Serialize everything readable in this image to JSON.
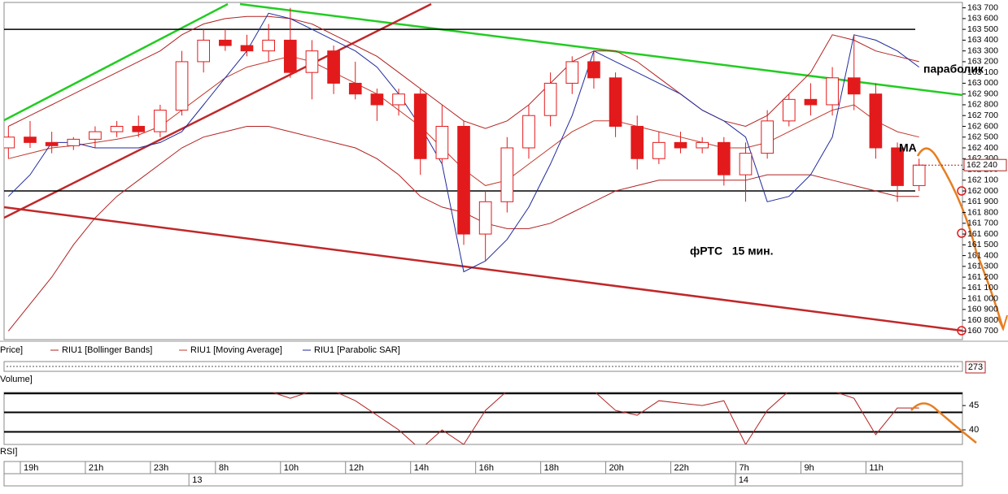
{
  "chart_data": {
    "type": "candlestick",
    "price_label": "Price]",
    "x": [
      -1,
      0,
      1,
      2,
      3,
      4,
      5,
      6,
      7,
      8,
      9,
      10,
      11,
      12,
      13,
      14,
      15,
      16,
      17,
      18,
      19,
      20,
      21,
      22,
      23,
      24,
      25,
      26,
      27,
      28,
      29,
      30,
      31,
      32,
      33,
      34,
      35,
      36,
      37,
      38,
      39,
      40,
      41
    ],
    "xlim": [
      -1.2,
      43
    ],
    "xticks": [
      {
        "value": 0,
        "label": "19h"
      },
      {
        "value": 3,
        "label": "21h"
      },
      {
        "value": 6,
        "label": "23h"
      },
      {
        "value": 9,
        "label": "8h"
      },
      {
        "value": 12,
        "label": "10h"
      },
      {
        "value": 15,
        "label": "12h"
      },
      {
        "value": 18,
        "label": "14h"
      },
      {
        "value": 21,
        "label": "16h"
      },
      {
        "value": 24,
        "label": "18h"
      },
      {
        "value": 27,
        "label": "20h"
      },
      {
        "value": 30,
        "label": "22h"
      },
      {
        "value": 33,
        "label": "7h"
      },
      {
        "value": 36,
        "label": "9h"
      },
      {
        "value": 39,
        "label": "11h"
      }
    ],
    "date_ticks": [
      {
        "value": 7.4,
        "label": "13"
      },
      {
        "value": 32.6,
        "label": "14"
      }
    ],
    "open": [
      162400,
      162500,
      162450,
      162420,
      162480,
      162550,
      162600,
      162550,
      162750,
      163200,
      163400,
      163350,
      163300,
      163400,
      163100,
      163300,
      163000,
      162900,
      162800,
      162900,
      162300,
      162600,
      161600,
      161900,
      162400,
      162700,
      163000,
      163200,
      163050,
      162600,
      162300,
      162450,
      162400,
      162450,
      162150,
      162350,
      162650,
      162850,
      162800,
      163050,
      162900,
      162400,
      162050
    ],
    "high": [
      162600,
      162650,
      162550,
      162500,
      162600,
      162650,
      162700,
      162800,
      163300,
      163500,
      163500,
      163450,
      163550,
      163700,
      163400,
      163350,
      163200,
      162950,
      162950,
      162950,
      162800,
      162650,
      162000,
      162500,
      162800,
      163100,
      163250,
      163300,
      163100,
      162700,
      162550,
      162550,
      162500,
      162500,
      162450,
      162750,
      162900,
      163000,
      163150,
      163450,
      163000,
      162450,
      162300
    ],
    "low": [
      162300,
      162400,
      162350,
      162380,
      162400,
      162500,
      162500,
      162500,
      162700,
      163100,
      163300,
      163250,
      163200,
      163050,
      162850,
      162900,
      162850,
      162650,
      162700,
      162150,
      162250,
      161500,
      161350,
      161800,
      162300,
      162600,
      162900,
      162950,
      162500,
      162200,
      162250,
      162350,
      162350,
      162050,
      161900,
      162300,
      162600,
      162700,
      162700,
      162750,
      162300,
      161900,
      162000
    ],
    "close": [
      162500,
      162450,
      162420,
      162480,
      162550,
      162600,
      162550,
      162750,
      163200,
      163400,
      163350,
      163300,
      163400,
      163100,
      163300,
      163000,
      162900,
      162800,
      162900,
      162300,
      162600,
      161600,
      161900,
      162400,
      162700,
      163000,
      163200,
      163050,
      162600,
      162300,
      162450,
      162400,
      162450,
      162150,
      162350,
      162650,
      162850,
      162800,
      163050,
      162900,
      162400,
      162050,
      162240
    ],
    "candle_color": "#e31a1c",
    "overlays": [
      {
        "name": "RIU1 [Bollinger Bands]",
        "color": "#b22222",
        "upper": [
          162600,
          162700,
          162800,
          162900,
          163000,
          163100,
          163200,
          163300,
          163450,
          163550,
          163600,
          163620,
          163620,
          163600,
          163550,
          163450,
          163350,
          163250,
          163100,
          162950,
          162800,
          162650,
          162580,
          162650,
          162800,
          163000,
          163200,
          163300,
          163300,
          163200,
          163050,
          162900,
          162750,
          162650,
          162600,
          162700,
          162900,
          163100,
          163450,
          163400,
          163300,
          163250,
          163200
        ],
        "lower": [
          160700,
          160950,
          161200,
          161500,
          161750,
          161950,
          162100,
          162250,
          162400,
          162500,
          162550,
          162600,
          162600,
          162550,
          162500,
          162450,
          162400,
          162300,
          162150,
          161950,
          161850,
          161800,
          161700,
          161650,
          161650,
          161700,
          161800,
          161900,
          162000,
          162050,
          162100,
          162100,
          162100,
          162100,
          162100,
          162150,
          162150,
          162150,
          162100,
          162050,
          162000,
          161950,
          161950
        ]
      },
      {
        "name": "RIU1 [Moving Average]",
        "color": "#c0392b",
        "values": [
          162300,
          162350,
          162400,
          162420,
          162450,
          162480,
          162520,
          162600,
          162750,
          162900,
          163050,
          163150,
          163200,
          163250,
          163200,
          163100,
          163000,
          162900,
          162750,
          162600,
          162400,
          162200,
          162050,
          162100,
          162250,
          162400,
          162550,
          162650,
          162650,
          162600,
          162550,
          162500,
          162450,
          162400,
          162400,
          162450,
          162550,
          162650,
          162750,
          162800,
          162650,
          162550,
          162500
        ]
      },
      {
        "name": "RIU1 [Parabolic SAR]",
        "color": "#1f2a9c",
        "values": [
          161950,
          162150,
          162450,
          162450,
          162400,
          162400,
          162400,
          162450,
          162550,
          162800,
          163050,
          163300,
          163650,
          163600,
          163500,
          163400,
          163300,
          163150,
          162900,
          162600,
          162250,
          161250,
          161350,
          161550,
          161850,
          162250,
          162700,
          163300,
          163200,
          163100,
          163000,
          162900,
          162750,
          162650,
          162500,
          161900,
          161950,
          162150,
          162500,
          163450,
          163400,
          163300,
          163150
        ]
      }
    ],
    "ylim": [
      160620,
      163750
    ],
    "yticks": [
      {
        "value": 163700,
        "label": "163 700"
      },
      {
        "value": 163600,
        "label": "163 600"
      },
      {
        "value": 163500,
        "label": "163 500"
      },
      {
        "value": 163400,
        "label": "163 400"
      },
      {
        "value": 163300,
        "label": "163 300"
      },
      {
        "value": 163200,
        "label": "163 200"
      },
      {
        "value": 163100,
        "label": "163 100"
      },
      {
        "value": 163000,
        "label": "163 000"
      },
      {
        "value": 162900,
        "label": "162 900"
      },
      {
        "value": 162800,
        "label": "162 800"
      },
      {
        "value": 162700,
        "label": "162 700"
      },
      {
        "value": 162600,
        "label": "162 600"
      },
      {
        "value": 162500,
        "label": "162 500"
      },
      {
        "value": 162400,
        "label": "162 400"
      },
      {
        "value": 162300,
        "label": "162 300"
      },
      {
        "value": 162200,
        "label": "162 200"
      },
      {
        "value": 162100,
        "label": "162 100"
      },
      {
        "value": 162000,
        "label": "162 000"
      },
      {
        "value": 161900,
        "label": "161 900"
      },
      {
        "value": 161800,
        "label": "161 800"
      },
      {
        "value": 161700,
        "label": "161 700"
      },
      {
        "value": 161600,
        "label": "161 600"
      },
      {
        "value": 161500,
        "label": "161 500"
      },
      {
        "value": 161400,
        "label": "161 400"
      },
      {
        "value": 161300,
        "label": "161 300"
      },
      {
        "value": 161200,
        "label": "161 200"
      },
      {
        "value": 161100,
        "label": "161 100"
      },
      {
        "value": 161000,
        "label": "161 000"
      },
      {
        "value": 160900,
        "label": "160 900"
      },
      {
        "value": 160800,
        "label": "160 800"
      },
      {
        "value": 160700,
        "label": "160 700"
      }
    ],
    "levels": [
      163500,
      162000
    ],
    "last_price": {
      "value": 162240,
      "label": "162 240"
    },
    "annotations": [
      "параболик",
      "MA",
      "фРТС   15 мин."
    ],
    "volume": {
      "label": "Volume]",
      "last_value": 273
    },
    "rsi": {
      "label": "RSI]",
      "color": "#b22222",
      "values": [
        48,
        48,
        48,
        48,
        48,
        48,
        48,
        48,
        48,
        48,
        48,
        48,
        48,
        46.5,
        48,
        48,
        46,
        43,
        40,
        36,
        40,
        37,
        44,
        48,
        48,
        48,
        48,
        48,
        44,
        43,
        46,
        45.5,
        45,
        46,
        37,
        44,
        48,
        48,
        48,
        46.5,
        39,
        44.5,
        44.5
      ],
      "ylim": [
        37,
        47.7
      ],
      "yticks": [
        45,
        40
      ],
      "levels": [
        47.5,
        43.6,
        39.6
      ]
    }
  }
}
